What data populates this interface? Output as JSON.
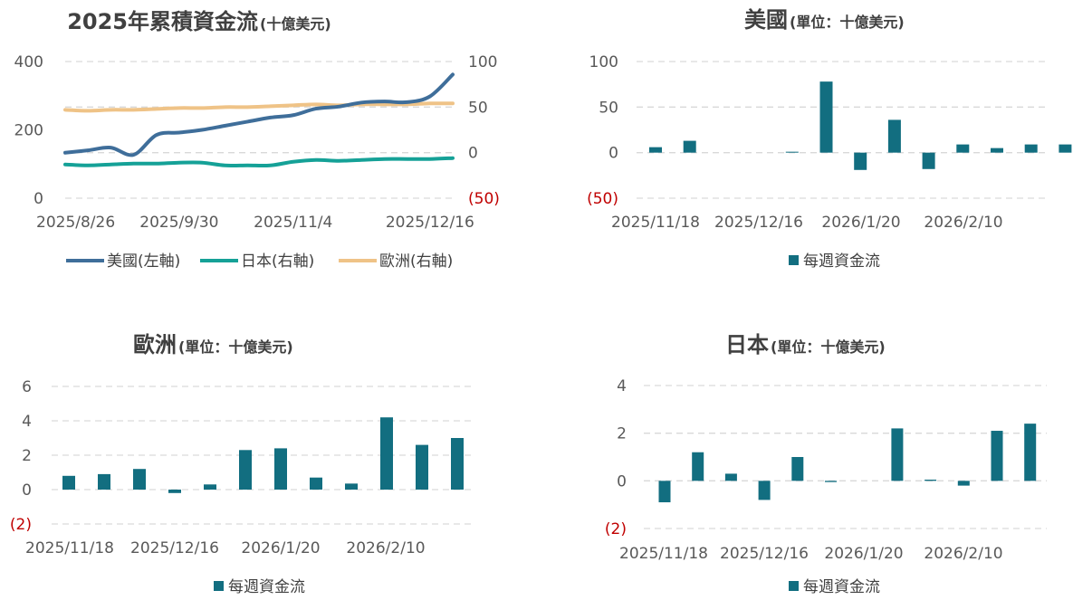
{
  "colors": {
    "us": "#3f6e9a",
    "japan": "#15a197",
    "europe": "#efc387",
    "bar": "#126e80",
    "negative_label": "#c00000"
  },
  "chart_data": [
    {
      "type": "line",
      "title": "2025年累積資金流",
      "title_unit": "(十億美元)",
      "x_tick_labels": [
        "2025/8/26",
        "2025/9/30",
        "2025/11/4",
        "2025/12/16"
      ],
      "left_axis": {
        "ylim": [
          0,
          400
        ],
        "ticks": [
          "0",
          "200",
          "400"
        ]
      },
      "right_axis": {
        "ylim": [
          -50,
          100
        ],
        "ticks": [
          "(50)",
          "0",
          "50",
          "100"
        ]
      },
      "x": [
        "2025/8/26",
        "2025/9/2",
        "2025/9/9",
        "2025/9/16",
        "2025/9/23",
        "2025/9/30",
        "2025/10/7",
        "2025/10/14",
        "2025/10/21",
        "2025/10/28",
        "2025/11/4",
        "2025/11/11",
        "2025/11/18",
        "2025/11/25",
        "2025/12/2",
        "2025/12/9",
        "2025/12/16",
        "2025/12/23"
      ],
      "series": [
        {
          "name": "美國(左軸)",
          "axis": "left",
          "values": [
            133,
            140,
            148,
            127,
            185,
            192,
            200,
            212,
            224,
            236,
            243,
            262,
            268,
            280,
            283,
            281,
            298,
            362
          ]
        },
        {
          "name": "日本(右軸)",
          "axis": "right",
          "values": [
            -13,
            -14,
            -13,
            -12,
            -12,
            -11,
            -11,
            -14,
            -14,
            -14,
            -10,
            -8,
            -9,
            -8,
            -7,
            -7,
            -7,
            -6
          ]
        },
        {
          "name": "歐洲(右軸)",
          "axis": "right",
          "values": [
            47,
            46,
            47,
            47,
            48,
            49,
            49,
            50,
            50,
            51,
            52,
            53,
            52,
            53,
            53,
            53,
            54,
            54
          ]
        }
      ],
      "legend": "bottom"
    },
    {
      "type": "bar",
      "title": "美國",
      "title_unit": "(單位：十億美元)",
      "ylim": [
        -50,
        100
      ],
      "y_ticks": [
        "(50)",
        "0",
        "50",
        "100"
      ],
      "x_tick_labels": [
        "2025/11/18",
        "2025/12/16",
        "2026/1/20",
        "2026/2/10"
      ],
      "series": [
        {
          "name": "每週資金流",
          "values": [
            6,
            13,
            0,
            0,
            1,
            78,
            -19,
            36,
            -18,
            9,
            5,
            9,
            9
          ]
        }
      ],
      "legend": "bottom"
    },
    {
      "type": "bar",
      "title": "歐洲",
      "title_unit": "(單位：十億美元)",
      "ylim": [
        -2,
        6
      ],
      "y_ticks": [
        "(2)",
        "0",
        "2",
        "4",
        "6"
      ],
      "x_tick_labels": [
        "2025/11/18",
        "2025/12/16",
        "2026/1/20",
        "2026/2/10"
      ],
      "series": [
        {
          "name": "每週資金流",
          "values": [
            0.8,
            0.9,
            1.2,
            -0.2,
            0.3,
            2.3,
            2.4,
            0.7,
            0.35,
            4.2,
            2.6,
            3.0
          ]
        }
      ],
      "legend": "bottom"
    },
    {
      "type": "bar",
      "title": "日本",
      "title_unit": "(單位：十億美元)",
      "ylim": [
        -2,
        4
      ],
      "y_ticks": [
        "(2)",
        "0",
        "2",
        "4"
      ],
      "x_tick_labels": [
        "2025/11/18",
        "2025/12/16",
        "2026/1/20",
        "2026/2/10"
      ],
      "series": [
        {
          "name": "每週資金流",
          "values": [
            -0.9,
            1.2,
            0.3,
            -0.8,
            1.0,
            -0.05,
            0,
            2.2,
            0.05,
            -0.2,
            2.1,
            2.4
          ]
        }
      ],
      "legend": "bottom"
    }
  ]
}
